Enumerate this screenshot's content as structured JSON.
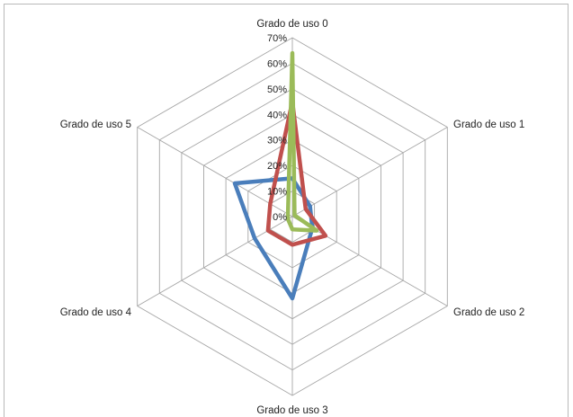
{
  "chart_data": {
    "type": "radar",
    "categories": [
      "Grado de uso 0",
      "Grado de uso 1",
      "Grado de uso 2",
      "Grado de uso 3",
      "Grado de uso 4",
      "Grado de uso 5"
    ],
    "axis": {
      "min": 0,
      "max": 70,
      "step": 10,
      "format": "percent"
    },
    "ticks": [
      "0%",
      "10%",
      "20%",
      "30%",
      "40%",
      "50%",
      "60%",
      "70%"
    ],
    "grid": true,
    "legend": "none",
    "series": [
      {
        "color": "#4a7ebb",
        "values": [
          15,
          8,
          9,
          32,
          17,
          26
        ]
      },
      {
        "color": "#c0504d",
        "values": [
          45,
          6,
          15,
          11,
          11,
          10
        ]
      },
      {
        "color": "#9bbb59",
        "values": [
          64,
          1,
          11,
          5,
          2,
          2
        ]
      }
    ]
  }
}
